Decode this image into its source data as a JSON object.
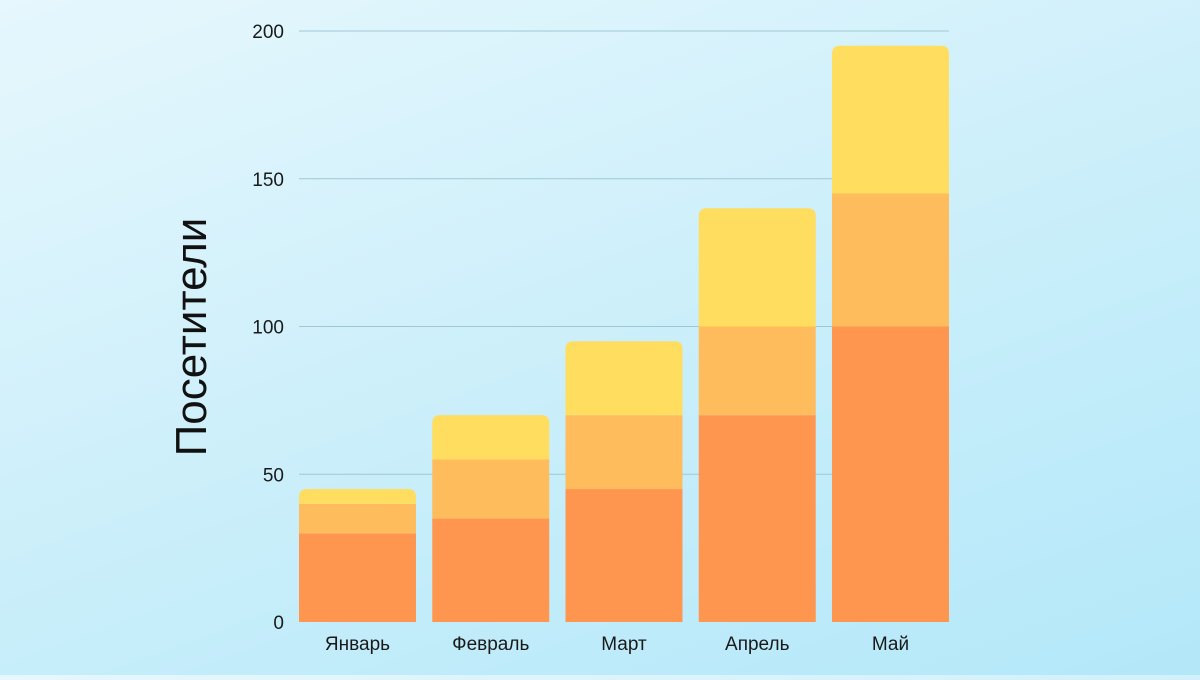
{
  "chart_data": {
    "type": "bar",
    "stacked": true,
    "title": "",
    "xlabel": "",
    "ylabel": "Посетители",
    "ylim": [
      0,
      200
    ],
    "yticks": [
      0,
      50,
      100,
      150,
      200
    ],
    "grid": true,
    "categories": [
      "Январь",
      "Февраль",
      "Март",
      "Апрель",
      "Май"
    ],
    "series": [
      {
        "values": [
          30,
          35,
          45,
          70,
          100
        ],
        "color": "#ff9650"
      },
      {
        "values": [
          10,
          20,
          25,
          30,
          45
        ],
        "color": "#ffbc5c"
      },
      {
        "values": [
          5,
          15,
          25,
          40,
          50
        ],
        "color": "#ffdd5e"
      }
    ]
  }
}
